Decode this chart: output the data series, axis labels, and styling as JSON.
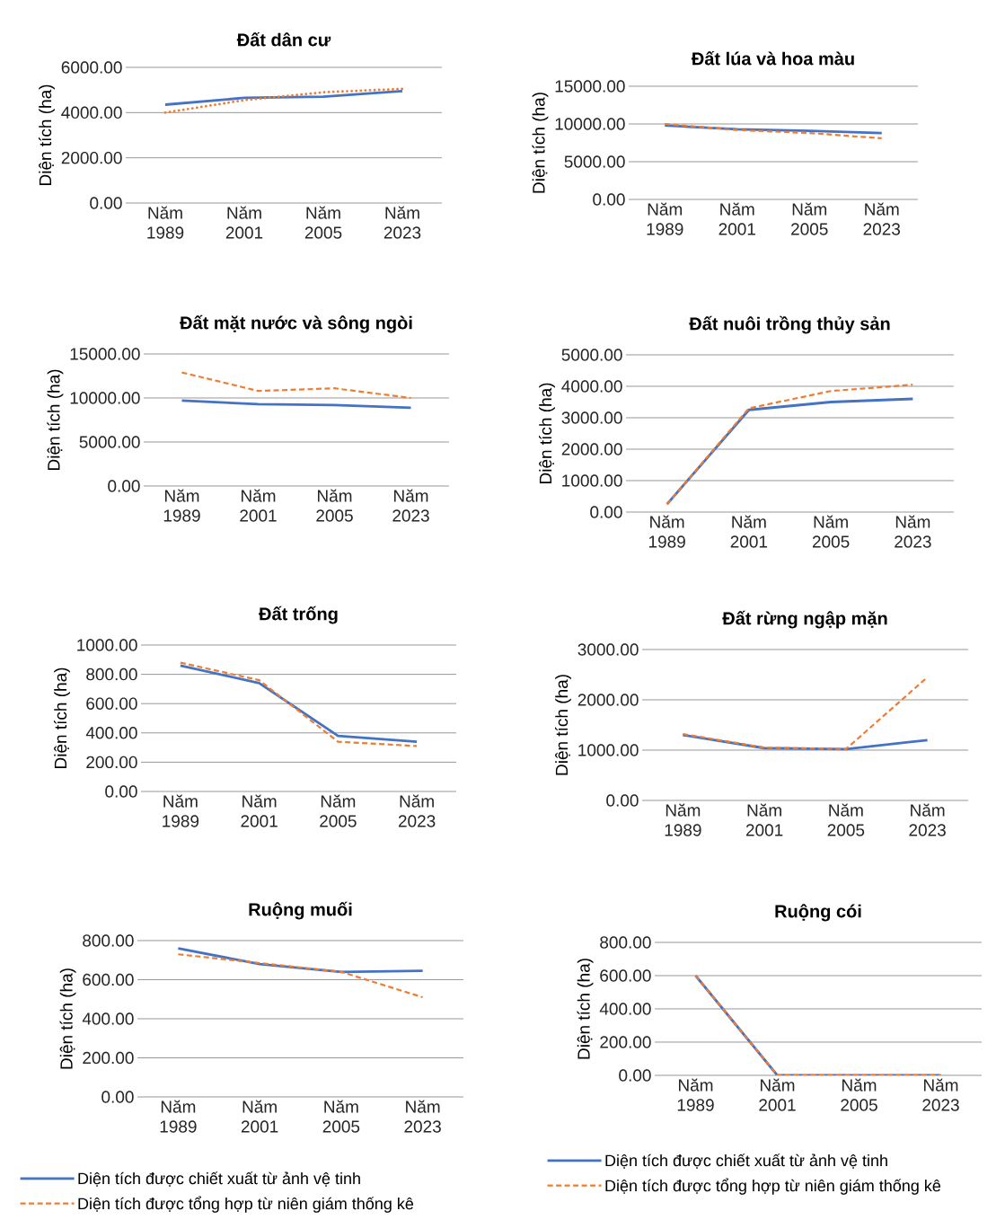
{
  "chart_data": [
    {
      "type": "line",
      "title": "Đất dân cư",
      "ylabel": "Diện tích (ha)",
      "categories": [
        "Năm 1989",
        "Năm 2001",
        "Năm 2005",
        "Năm 2023"
      ],
      "ylim": [
        0,
        6000
      ],
      "yticks": [
        {
          "value": 0,
          "label": "0.00"
        },
        {
          "value": 2000,
          "label": "2000.00"
        },
        {
          "value": 4000,
          "label": "4000.00"
        },
        {
          "value": 6000,
          "label": "6000.00"
        }
      ],
      "grid": "y",
      "series": [
        {
          "color": "#4472c4",
          "line_style": "solid",
          "values": [
            4350,
            4650,
            4700,
            4950
          ]
        },
        {
          "color": "#ed7d31",
          "line_style": "dotted",
          "values": [
            4000,
            4550,
            4900,
            5050
          ]
        }
      ]
    },
    {
      "type": "line",
      "title": "Đất lúa và hoa màu",
      "ylabel": "Diện tích (ha)",
      "categories": [
        "Năm 1989",
        "Năm 2001",
        "Năm 2005",
        "Năm 2023"
      ],
      "ylim": [
        0,
        15000
      ],
      "yticks": [
        {
          "value": 0,
          "label": "0.00"
        },
        {
          "value": 5000,
          "label": "5000.00"
        },
        {
          "value": 10000,
          "label": "10000.00"
        },
        {
          "value": 15000,
          "label": "15000.00"
        }
      ],
      "grid": "y",
      "series": [
        {
          "color": "#4472c4",
          "line_style": "solid",
          "values": [
            9800,
            9300,
            9100,
            8800
          ]
        },
        {
          "color": "#ed7d31",
          "line_style": "dashed",
          "values": [
            10000,
            9200,
            8800,
            8100
          ]
        }
      ]
    },
    {
      "type": "line",
      "title": "Đất mặt nước và sông ngòi",
      "ylabel": "Diện tích (ha)",
      "categories": [
        "Năm 1989",
        "Năm 2001",
        "Năm 2005",
        "Năm 2023"
      ],
      "ylim": [
        0,
        15000
      ],
      "yticks": [
        {
          "value": 0,
          "label": "0.00"
        },
        {
          "value": 5000,
          "label": "5000.00"
        },
        {
          "value": 10000,
          "label": "10000.00"
        },
        {
          "value": 15000,
          "label": "15000.00"
        }
      ],
      "grid": "y",
      "series": [
        {
          "color": "#4472c4",
          "line_style": "solid",
          "values": [
            9700,
            9300,
            9200,
            8900
          ]
        },
        {
          "color": "#ed7d31",
          "line_style": "dashed",
          "values": [
            12900,
            10800,
            11100,
            10000
          ]
        }
      ]
    },
    {
      "type": "line",
      "title": "Đất nuôi trồng thủy sản",
      "ylabel": "Diện tích (ha)",
      "categories": [
        "Năm 1989",
        "Năm 2001",
        "Năm 2005",
        "Năm 2023"
      ],
      "ylim": [
        0,
        5000
      ],
      "yticks": [
        {
          "value": 0,
          "label": "0.00"
        },
        {
          "value": 1000,
          "label": "1000.00"
        },
        {
          "value": 2000,
          "label": "2000.00"
        },
        {
          "value": 3000,
          "label": "3000.00"
        },
        {
          "value": 4000,
          "label": "4000.00"
        },
        {
          "value": 5000,
          "label": "5000.00"
        }
      ],
      "grid": "y",
      "series": [
        {
          "color": "#4472c4",
          "line_style": "solid",
          "values": [
            250,
            3250,
            3500,
            3600
          ]
        },
        {
          "color": "#ed7d31",
          "line_style": "dashed",
          "values": [
            250,
            3300,
            3850,
            4050
          ]
        }
      ]
    },
    {
      "type": "line",
      "title": "Đất trống",
      "ylabel": "Diện tích (ha)",
      "categories": [
        "Năm 1989",
        "Năm 2001",
        "Năm 2005",
        "Năm 2023"
      ],
      "ylim": [
        0,
        1000
      ],
      "yticks": [
        {
          "value": 0,
          "label": "0.00"
        },
        {
          "value": 200,
          "label": "200.00"
        },
        {
          "value": 400,
          "label": "400.00"
        },
        {
          "value": 600,
          "label": "600.00"
        },
        {
          "value": 800,
          "label": "800.00"
        },
        {
          "value": 1000,
          "label": "1000.00"
        }
      ],
      "grid": "y",
      "series": [
        {
          "color": "#4472c4",
          "line_style": "solid",
          "values": [
            860,
            740,
            380,
            340
          ]
        },
        {
          "color": "#ed7d31",
          "line_style": "dashed",
          "values": [
            880,
            760,
            340,
            310
          ]
        }
      ]
    },
    {
      "type": "line",
      "title": "Đất rừng ngập mặn",
      "ylabel": "Diện tích (ha)",
      "categories": [
        "Năm 1989",
        "Năm 2001",
        "Năm 2005",
        "Năm 2023"
      ],
      "ylim": [
        0,
        3000
      ],
      "yticks": [
        {
          "value": 0,
          "label": "0.00"
        },
        {
          "value": 1000,
          "label": "1000.00"
        },
        {
          "value": 2000,
          "label": "2000.00"
        },
        {
          "value": 3000,
          "label": "3000.00"
        }
      ],
      "grid": "y",
      "series": [
        {
          "color": "#4472c4",
          "line_style": "solid",
          "values": [
            1300,
            1040,
            1020,
            1200
          ]
        },
        {
          "color": "#ed7d31",
          "line_style": "dashed",
          "values": [
            1320,
            1050,
            1020,
            2450
          ]
        }
      ]
    },
    {
      "type": "line",
      "title": "Ruộng muối",
      "ylabel": "Diện tích (ha)",
      "categories": [
        "Năm 1989",
        "Năm 2001",
        "Năm 2005",
        "Năm 2023"
      ],
      "ylim": [
        0,
        800
      ],
      "yticks": [
        {
          "value": 0,
          "label": "0.00"
        },
        {
          "value": 200,
          "label": "200.00"
        },
        {
          "value": 400,
          "label": "400.00"
        },
        {
          "value": 600,
          "label": "600.00"
        },
        {
          "value": 800,
          "label": "800.00"
        }
      ],
      "grid": "y",
      "legend": "bottom",
      "series": [
        {
          "name": "Diện tích được chiết xuất từ ảnh vệ tinh",
          "color": "#4472c4",
          "line_style": "solid",
          "values": [
            760,
            680,
            640,
            645
          ]
        },
        {
          "name": "Diện tích được tổng hợp từ niên giám thống kê",
          "color": "#ed7d31",
          "line_style": "dashed",
          "values": [
            730,
            685,
            640,
            510
          ]
        }
      ]
    },
    {
      "type": "line",
      "title": "Ruộng cói",
      "ylabel": "Diện tích (ha)",
      "categories": [
        "Năm 1989",
        "Năm 2001",
        "Năm 2005",
        "Năm 2023"
      ],
      "ylim": [
        0,
        800
      ],
      "yticks": [
        {
          "value": 0,
          "label": "0.00"
        },
        {
          "value": 200,
          "label": "200.00"
        },
        {
          "value": 400,
          "label": "400.00"
        },
        {
          "value": 600,
          "label": "600.00"
        },
        {
          "value": 800,
          "label": "800.00"
        }
      ],
      "grid": "y",
      "legend": "bottom",
      "series": [
        {
          "name": "Diện tích được chiết xuất từ ảnh vệ tinh",
          "color": "#4472c4",
          "line_style": "solid",
          "values": [
            600,
            0,
            0,
            0
          ]
        },
        {
          "name": "Diện tích được tổng hợp từ niên giám thống kê",
          "color": "#ed7d31",
          "line_style": "dashed",
          "values": [
            600,
            0,
            0,
            0
          ]
        }
      ]
    }
  ]
}
